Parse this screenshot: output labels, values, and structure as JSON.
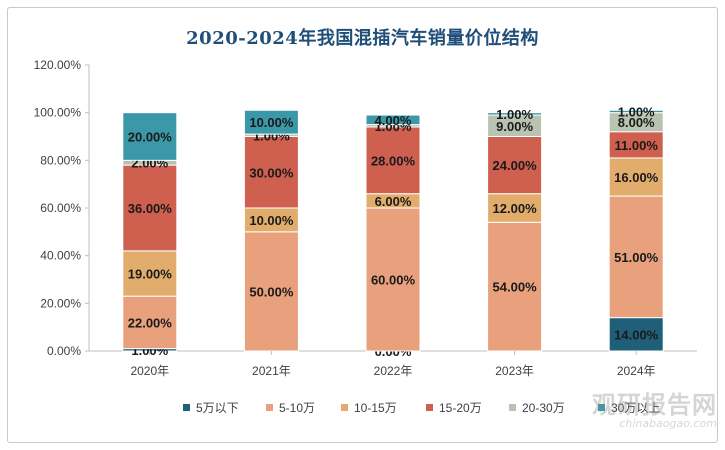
{
  "chart_data": {
    "type": "bar",
    "stacked": true,
    "title": "2020-2024年我国混插汽车销量价位结构",
    "categories": [
      "2020年",
      "2021年",
      "2022年",
      "2023年",
      "2024年"
    ],
    "ylim": [
      0,
      120
    ],
    "yticks": [
      "0.00%",
      "20.00%",
      "40.00%",
      "60.00%",
      "80.00%",
      "100.00%",
      "120.00%"
    ],
    "grid": false,
    "legend_position": "bottom",
    "series": [
      {
        "name": "5万以下",
        "color": "#1f5f7a",
        "values": [
          1,
          0,
          0,
          0,
          14
        ],
        "labels": [
          "1.00%",
          "",
          "0.00%",
          "",
          "14.00%"
        ]
      },
      {
        "name": "5-10万",
        "color": "#e8a07d",
        "values": [
          22,
          50,
          60,
          54,
          51
        ],
        "labels": [
          "22.00%",
          "50.00%",
          "60.00%",
          "54.00%",
          "51.00%"
        ]
      },
      {
        "name": "10-15万",
        "color": "#e2ad6c",
        "values": [
          19,
          10,
          6,
          12,
          16
        ],
        "labels": [
          "19.00%",
          "10.00%",
          "6.00%",
          "12.00%",
          "16.00%"
        ]
      },
      {
        "name": "15-20万",
        "color": "#cf5f4f",
        "values": [
          36,
          30,
          28,
          24,
          11
        ],
        "labels": [
          "36.00%",
          "30.00%",
          "28.00%",
          "24.00%",
          "11.00%"
        ]
      },
      {
        "name": "20-30万",
        "color": "#b9c3b2",
        "values": [
          2,
          1,
          1,
          9,
          8
        ],
        "labels": [
          "2.00%",
          "1.00%",
          "1.00%",
          "9.00%",
          "8.00%"
        ]
      },
      {
        "name": "30万以上",
        "color": "#3a98a8",
        "values": [
          20,
          10,
          4,
          1,
          1
        ],
        "labels": [
          "20.00%",
          "10.00%",
          "4.00%",
          "1.00%",
          "1.00%"
        ]
      }
    ]
  },
  "watermark": {
    "main": "观研报告网",
    "sub": "chinabaogao.com"
  }
}
